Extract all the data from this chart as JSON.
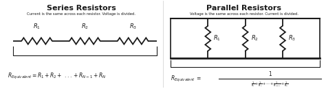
{
  "bg_color": "#ffffff",
  "title_series": "Series Resistors",
  "title_parallel": "Parallel Resistors",
  "subtitle_series": "Current is the same across each resistor. Voltage is divided.",
  "subtitle_parallel": "Voltage is the same across each resistor. Current is divided.",
  "text_color": "#1a1a1a",
  "line_color": "#1a1a1a",
  "resistor_color": "#1a1a1a",
  "series_formula": "$R_{Equivalent} = R_1 + R_2 + \\ ... + R_{N-1} + R_N$",
  "par_labels": [
    "$R_1$",
    "$R_2$",
    "$R_3$"
  ],
  "ser_labels": [
    "$R_1$",
    "$R_2$",
    "$R_3$"
  ]
}
